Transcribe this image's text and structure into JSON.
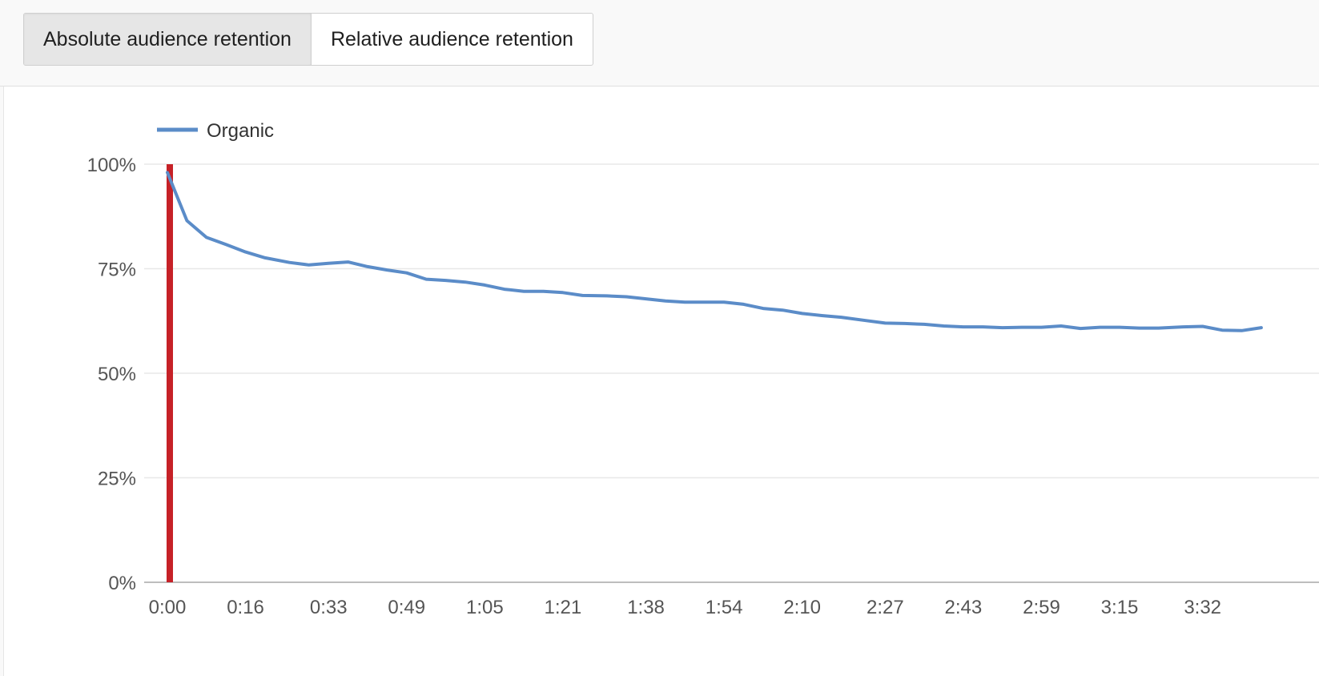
{
  "tabs": {
    "absolute": "Absolute audience retention",
    "relative": "Relative audience retention"
  },
  "chart_data": {
    "type": "line",
    "legend": {
      "position": "top-left",
      "entries": [
        "Organic"
      ]
    },
    "grid": true,
    "ylim": [
      0,
      100
    ],
    "y_ticks": [
      "100%",
      "75%",
      "50%",
      "25%",
      "0%"
    ],
    "x_ticks": [
      "0:00",
      "0:16",
      "0:33",
      "0:49",
      "1:05",
      "1:21",
      "1:38",
      "1:54",
      "2:10",
      "2:27",
      "2:43",
      "2:59",
      "3:15",
      "3:32"
    ],
    "marker": {
      "position": "0:00",
      "color": "#c62127"
    },
    "series": [
      {
        "name": "Organic",
        "color": "#5b8cc8",
        "points": [
          [
            "0:00",
            98
          ],
          [
            "0:04",
            86.5
          ],
          [
            "0:08",
            82.5
          ],
          [
            "0:12",
            80.8
          ],
          [
            "0:16",
            79
          ],
          [
            "0:20",
            77.6
          ],
          [
            "0:25",
            76.5
          ],
          [
            "0:29",
            75.9
          ],
          [
            "0:33",
            76.3
          ],
          [
            "0:37",
            76.6
          ],
          [
            "0:41",
            75.5
          ],
          [
            "0:45",
            74.7
          ],
          [
            "0:49",
            74
          ],
          [
            "0:53",
            72.5
          ],
          [
            "0:57",
            72.2
          ],
          [
            "1:01",
            71.8
          ],
          [
            "1:05",
            71.1
          ],
          [
            "1:09",
            70.1
          ],
          [
            "1:13",
            69.6
          ],
          [
            "1:17",
            69.6
          ],
          [
            "1:21",
            69.3
          ],
          [
            "1:25",
            68.6
          ],
          [
            "1:30",
            68.5
          ],
          [
            "1:34",
            68.3
          ],
          [
            "1:38",
            67.8
          ],
          [
            "1:42",
            67.3
          ],
          [
            "1:46",
            67
          ],
          [
            "1:50",
            67
          ],
          [
            "1:54",
            67
          ],
          [
            "1:58",
            66.5
          ],
          [
            "2:02",
            65.5
          ],
          [
            "2:06",
            65.1
          ],
          [
            "2:10",
            64.3
          ],
          [
            "2:14",
            63.8
          ],
          [
            "2:18",
            63.4
          ],
          [
            "2:23",
            62.6
          ],
          [
            "2:27",
            62
          ],
          [
            "2:31",
            61.9
          ],
          [
            "2:35",
            61.7
          ],
          [
            "2:39",
            61.3
          ],
          [
            "2:43",
            61.1
          ],
          [
            "2:47",
            61.1
          ],
          [
            "2:51",
            60.9
          ],
          [
            "2:55",
            61
          ],
          [
            "2:59",
            61
          ],
          [
            "3:03",
            61.3
          ],
          [
            "3:07",
            60.7
          ],
          [
            "3:11",
            61
          ],
          [
            "3:15",
            61
          ],
          [
            "3:19",
            60.8
          ],
          [
            "3:23",
            60.8
          ],
          [
            "3:28",
            61.1
          ],
          [
            "3:32",
            61.2
          ],
          [
            "3:36",
            60.3
          ],
          [
            "3:40",
            60.2
          ],
          [
            "3:44",
            60.9
          ]
        ]
      }
    ]
  }
}
